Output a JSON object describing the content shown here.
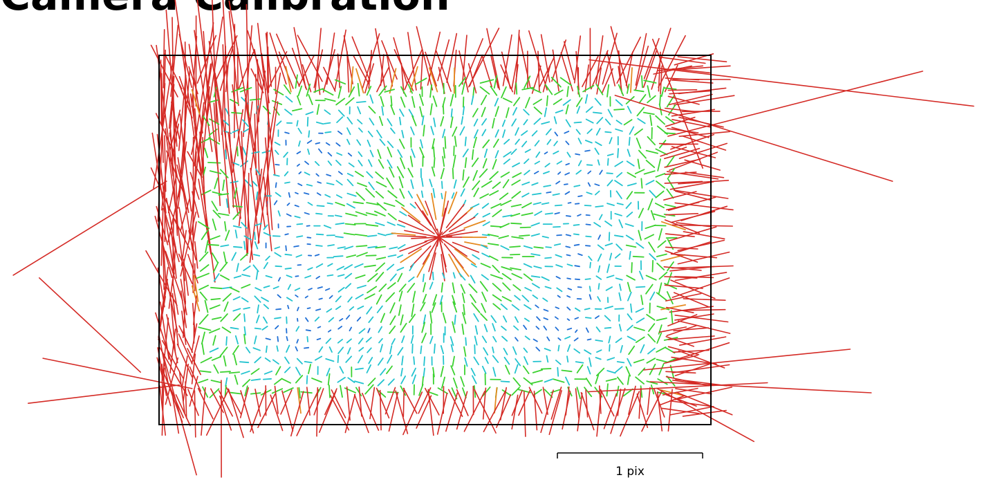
{
  "title": "Camera Calibration",
  "scale_bar": {
    "label": "1 pix"
  },
  "colors": {
    "frame": "#000000",
    "magnitude_scale": [
      "#1f6fd6",
      "#22c3cf",
      "#3bd12f",
      "#c9cf20",
      "#e58a20",
      "#d42a25"
    ]
  }
}
